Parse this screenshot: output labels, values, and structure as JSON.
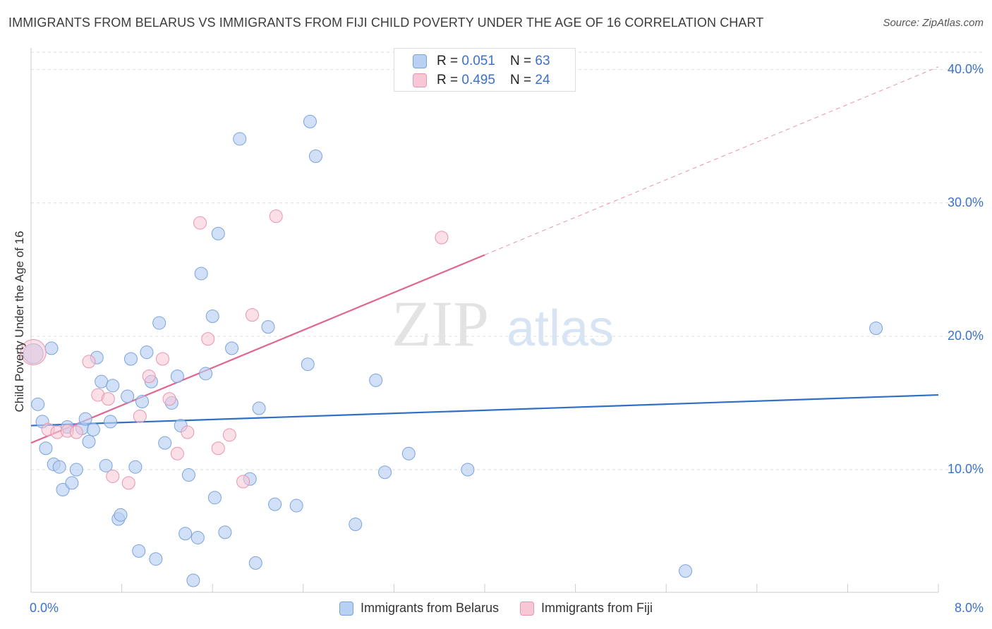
{
  "title": "IMMIGRANTS FROM BELARUS VS IMMIGRANTS FROM FIJI CHILD POVERTY UNDER THE AGE OF 16 CORRELATION CHART",
  "source": "Source: ZipAtlas.com",
  "watermark": {
    "zip": "ZIP",
    "atlas": "atlas"
  },
  "colors": {
    "belarus_fill": "#b8d0f2",
    "belarus_stroke": "#7aa3dc",
    "belarus_line": "#2f6fc6",
    "fiji_fill": "#f7c7d5",
    "fiji_stroke": "#ea94ae",
    "fiji_line": "#e06590",
    "axis_text": "#3a72c9",
    "grid": "#dddddd"
  },
  "legend": {
    "rows": [
      {
        "r_label": "R = ",
        "r_value": "0.051",
        "n_label": "N = ",
        "n_value": "63"
      },
      {
        "r_label": "R = ",
        "r_value": "0.495",
        "n_label": "N = ",
        "n_value": "24"
      }
    ]
  },
  "bottom_legend": [
    "Immigrants from Belarus",
    "Immigrants from Fiji"
  ],
  "chart_data": {
    "type": "scatter",
    "title": "IMMIGRANTS FROM BELARUS VS IMMIGRANTS FROM FIJI CHILD POVERTY UNDER THE AGE OF 16 CORRELATION CHART",
    "xlabel": "",
    "ylabel": "Child Poverty Under the Age of 16",
    "xlim": [
      0,
      8
    ],
    "ylim": [
      0.8,
      41.3
    ],
    "x_ticks_labels": [
      "0.0%",
      "8.0%"
    ],
    "y_ticks": [
      10,
      20,
      30,
      40
    ],
    "y_tick_labels": [
      "10.0%",
      "20.0%",
      "30.0%",
      "40.0%"
    ],
    "grid": true,
    "legend_position": "top-center",
    "series": [
      {
        "name": "Immigrants from Belarus",
        "points": [
          [
            0.02,
            18.7
          ],
          [
            0.06,
            14.9
          ],
          [
            0.1,
            13.6
          ],
          [
            0.13,
            11.6
          ],
          [
            0.18,
            19.1
          ],
          [
            0.2,
            10.4
          ],
          [
            0.25,
            10.2
          ],
          [
            0.28,
            8.5
          ],
          [
            0.32,
            13.2
          ],
          [
            0.36,
            9.0
          ],
          [
            0.4,
            10.0
          ],
          [
            0.45,
            13.1
          ],
          [
            0.48,
            13.8
          ],
          [
            0.51,
            12.1
          ],
          [
            0.55,
            13.0
          ],
          [
            0.58,
            18.4
          ],
          [
            0.62,
            16.6
          ],
          [
            0.66,
            10.3
          ],
          [
            0.7,
            13.6
          ],
          [
            0.72,
            16.3
          ],
          [
            0.77,
            6.3
          ],
          [
            0.79,
            6.6
          ],
          [
            0.85,
            15.5
          ],
          [
            0.88,
            18.3
          ],
          [
            0.92,
            10.2
          ],
          [
            0.95,
            3.9
          ],
          [
            0.98,
            15.1
          ],
          [
            1.02,
            18.8
          ],
          [
            1.06,
            16.6
          ],
          [
            1.1,
            3.3
          ],
          [
            1.13,
            21.0
          ],
          [
            1.18,
            12.0
          ],
          [
            1.24,
            15.0
          ],
          [
            1.29,
            17.0
          ],
          [
            1.32,
            13.3
          ],
          [
            1.36,
            5.2
          ],
          [
            1.39,
            9.6
          ],
          [
            1.43,
            1.7
          ],
          [
            1.47,
            4.9
          ],
          [
            1.5,
            24.7
          ],
          [
            1.54,
            17.2
          ],
          [
            1.6,
            21.5
          ],
          [
            1.62,
            7.9
          ],
          [
            1.65,
            27.7
          ],
          [
            1.71,
            5.3
          ],
          [
            1.77,
            19.1
          ],
          [
            1.84,
            34.8
          ],
          [
            1.93,
            9.3
          ],
          [
            1.98,
            3.0
          ],
          [
            2.01,
            14.6
          ],
          [
            2.09,
            20.7
          ],
          [
            2.15,
            7.4
          ],
          [
            2.34,
            7.3
          ],
          [
            2.44,
            17.9
          ],
          [
            2.46,
            36.1
          ],
          [
            2.51,
            33.5
          ],
          [
            2.86,
            5.9
          ],
          [
            3.04,
            16.7
          ],
          [
            3.12,
            9.8
          ],
          [
            3.33,
            11.2
          ],
          [
            3.85,
            10.0
          ],
          [
            5.77,
            2.4
          ],
          [
            7.45,
            20.6
          ]
        ],
        "sizes": [
          30,
          13
        ]
      },
      {
        "name": "Immigrants from Fiji",
        "points": [
          [
            0.02,
            18.8
          ],
          [
            0.15,
            13.0
          ],
          [
            0.23,
            12.8
          ],
          [
            0.32,
            12.9
          ],
          [
            0.4,
            12.8
          ],
          [
            0.51,
            18.1
          ],
          [
            0.59,
            15.6
          ],
          [
            0.68,
            15.3
          ],
          [
            0.72,
            9.5
          ],
          [
            0.86,
            9.0
          ],
          [
            0.96,
            14.0
          ],
          [
            1.04,
            17.0
          ],
          [
            1.16,
            18.3
          ],
          [
            1.22,
            15.3
          ],
          [
            1.29,
            11.2
          ],
          [
            1.38,
            12.8
          ],
          [
            1.49,
            28.5
          ],
          [
            1.56,
            19.8
          ],
          [
            1.65,
            11.6
          ],
          [
            1.75,
            12.6
          ],
          [
            1.87,
            9.1
          ],
          [
            1.95,
            21.6
          ],
          [
            2.16,
            29.0
          ],
          [
            3.62,
            27.4
          ]
        ]
      }
    ],
    "trendlines": [
      {
        "series": "Immigrants from Belarus",
        "x": [
          0,
          8
        ],
        "y": [
          13.3,
          15.6
        ]
      },
      {
        "series": "Immigrants from Fiji",
        "solid_x": [
          0,
          4.0
        ],
        "solid_y": [
          12.0,
          26.1
        ],
        "dashed_x": [
          4.0,
          8.0
        ],
        "dashed_y": [
          26.1,
          40.2
        ]
      }
    ]
  }
}
